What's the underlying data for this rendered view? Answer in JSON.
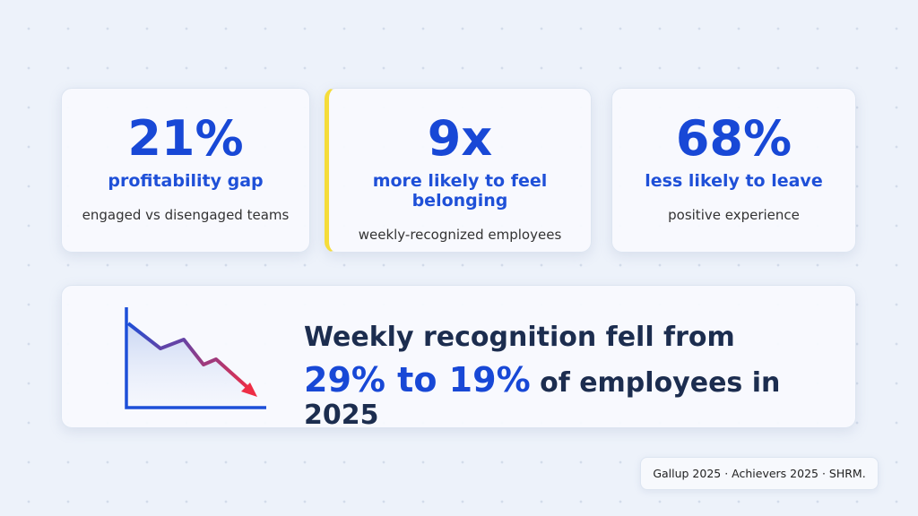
{
  "cards": [
    {
      "stat": "21%",
      "label": "profitability gap",
      "sub": "engaged vs disengaged teams"
    },
    {
      "stat": "9x",
      "label": "more likely to feel belonging",
      "sub": "weekly-recognized employees"
    },
    {
      "stat": "68%",
      "label": "less likely to leave",
      "sub": "positive experience"
    }
  ],
  "banner": {
    "line1": "Weekly recognition fell from",
    "highlight": "29% to 19%",
    "rest": "of employees in 2025"
  },
  "source": "Gallup 2025 · Achievers 2025 · SHRM."
}
